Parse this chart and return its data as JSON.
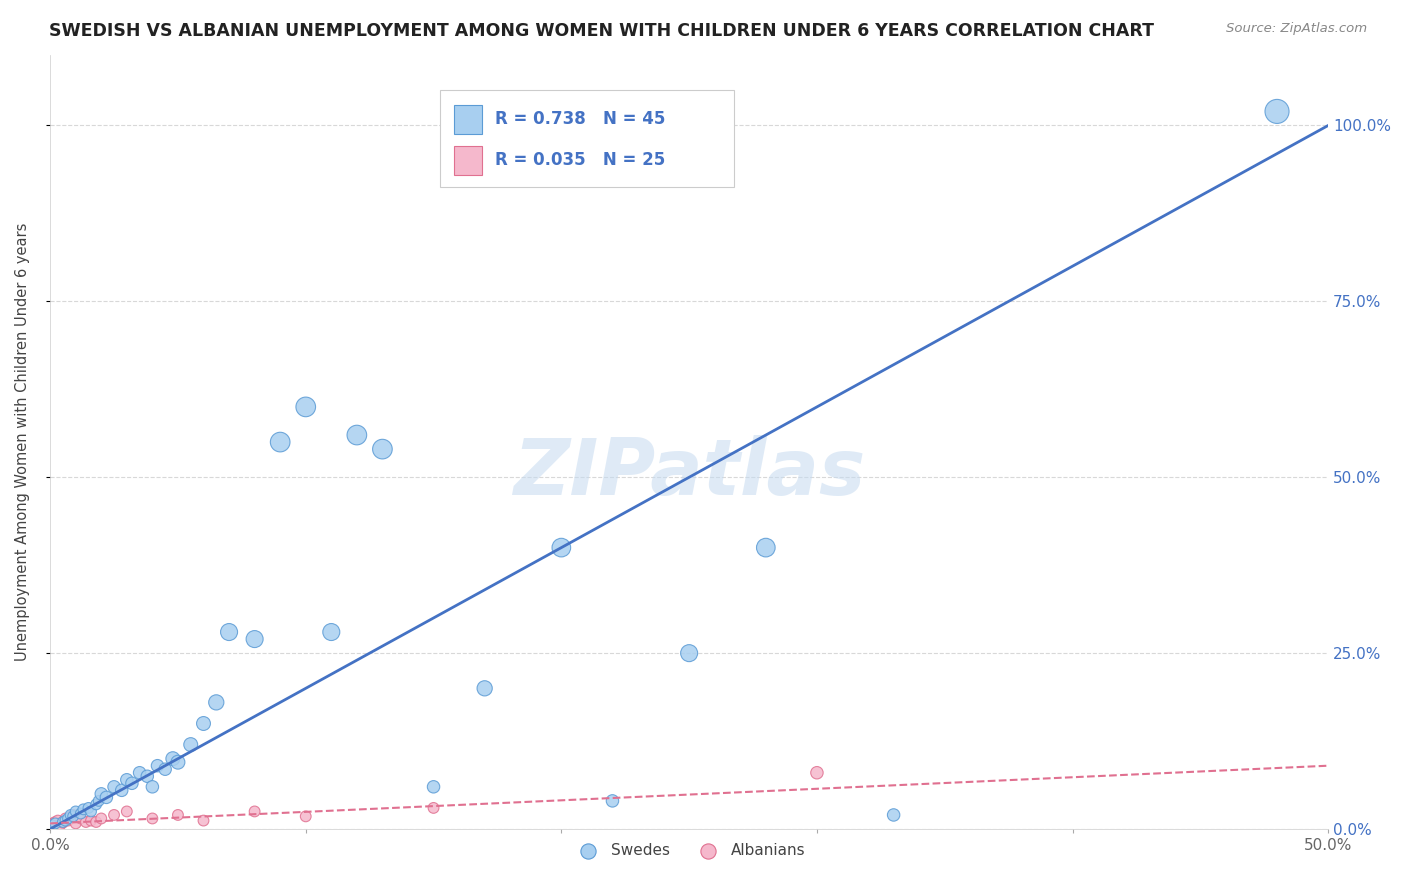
{
  "title": "SWEDISH VS ALBANIAN UNEMPLOYMENT AMONG WOMEN WITH CHILDREN UNDER 6 YEARS CORRELATION CHART",
  "source": "Source: ZipAtlas.com",
  "ylabel": "Unemployment Among Women with Children Under 6 years",
  "xlim": [
    0.0,
    0.5
  ],
  "ylim": [
    0.0,
    1.1
  ],
  "xticks": [
    0.0,
    0.1,
    0.2,
    0.3,
    0.4,
    0.5
  ],
  "xticklabels": [
    "0.0%",
    "",
    "",
    "",
    "",
    "50.0%"
  ],
  "yticks": [
    0.0,
    0.25,
    0.5,
    0.75,
    1.0
  ],
  "yticklabels": [
    "0.0%",
    "25.0%",
    "50.0%",
    "75.0%",
    "100.0%"
  ],
  "background_color": "#ffffff",
  "grid_color": "#d8d8d8",
  "watermark": "ZIPatlas",
  "swedes_color": "#a8cff0",
  "albanians_color": "#f5b8cc",
  "swedes_edge_color": "#5b9bd5",
  "albanians_edge_color": "#e07090",
  "trend_swedes_color": "#4472c4",
  "trend_albanians_color": "#e07090",
  "R_swedes": 0.738,
  "N_swedes": 45,
  "R_albanians": 0.035,
  "N_albanians": 25,
  "swedes_x": [
    0.001,
    0.002,
    0.005,
    0.006,
    0.007,
    0.008,
    0.009,
    0.01,
    0.012,
    0.013,
    0.015,
    0.016,
    0.018,
    0.019,
    0.02,
    0.022,
    0.025,
    0.028,
    0.03,
    0.032,
    0.035,
    0.038,
    0.04,
    0.042,
    0.045,
    0.048,
    0.05,
    0.055,
    0.06,
    0.065,
    0.07,
    0.08,
    0.09,
    0.1,
    0.11,
    0.12,
    0.13,
    0.15,
    0.17,
    0.2,
    0.22,
    0.25,
    0.28,
    0.33,
    0.48
  ],
  "swedes_y": [
    0.005,
    0.008,
    0.01,
    0.012,
    0.015,
    0.02,
    0.018,
    0.025,
    0.022,
    0.028,
    0.03,
    0.025,
    0.035,
    0.04,
    0.05,
    0.045,
    0.06,
    0.055,
    0.07,
    0.065,
    0.08,
    0.075,
    0.06,
    0.09,
    0.085,
    0.1,
    0.095,
    0.12,
    0.15,
    0.18,
    0.28,
    0.27,
    0.55,
    0.6,
    0.28,
    0.56,
    0.54,
    0.06,
    0.2,
    0.4,
    0.04,
    0.25,
    0.4,
    0.02,
    1.02
  ],
  "albanians_x": [
    0.0,
    0.001,
    0.002,
    0.003,
    0.004,
    0.005,
    0.006,
    0.007,
    0.008,
    0.009,
    0.01,
    0.012,
    0.014,
    0.016,
    0.018,
    0.02,
    0.025,
    0.03,
    0.04,
    0.05,
    0.06,
    0.08,
    0.1,
    0.15,
    0.3
  ],
  "albanians_y": [
    0.005,
    0.008,
    0.01,
    0.012,
    0.006,
    0.009,
    0.015,
    0.012,
    0.018,
    0.02,
    0.008,
    0.015,
    0.01,
    0.012,
    0.01,
    0.015,
    0.02,
    0.025,
    0.015,
    0.02,
    0.012,
    0.025,
    0.018,
    0.03,
    0.08
  ],
  "swedes_sizes": [
    60,
    60,
    60,
    60,
    60,
    60,
    60,
    60,
    60,
    60,
    60,
    60,
    60,
    60,
    80,
    80,
    80,
    80,
    80,
    80,
    80,
    80,
    80,
    80,
    80,
    100,
    100,
    100,
    100,
    120,
    150,
    150,
    200,
    200,
    150,
    200,
    200,
    80,
    120,
    180,
    80,
    150,
    180,
    80,
    300
  ],
  "albanians_sizes": [
    60,
    60,
    60,
    60,
    60,
    60,
    60,
    60,
    60,
    60,
    60,
    60,
    60,
    60,
    60,
    60,
    60,
    60,
    60,
    60,
    60,
    60,
    60,
    60,
    80
  ]
}
